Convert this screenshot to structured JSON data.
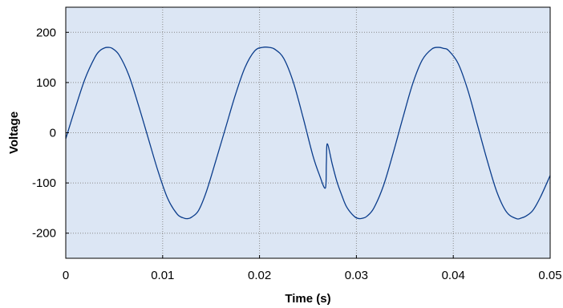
{
  "chart_data": {
    "type": "line",
    "title": "",
    "xlabel": "Time (s)",
    "ylabel": "Voltage",
    "xlim": [
      0,
      0.05
    ],
    "ylim": [
      -250,
      250
    ],
    "x_ticks": [
      0,
      0.01,
      0.02,
      0.03,
      0.04,
      0.05
    ],
    "x_tick_labels": [
      "0",
      "0.01",
      "0.02",
      "0.03",
      "0.04",
      "0.05"
    ],
    "y_ticks": [
      200,
      100,
      0,
      -100,
      -200
    ],
    "y_tick_labels": [
      "200",
      "100",
      "0",
      "-100",
      "-200"
    ],
    "grid": true,
    "legend": "none",
    "series": [
      {
        "color": "#0b3d8c",
        "x": [
          0,
          0.001,
          0.002,
          0.003,
          0.0035,
          0.004,
          0.0044,
          0.0048,
          0.0055,
          0.0065,
          0.0075,
          0.0085,
          0.0095,
          0.0105,
          0.0115,
          0.0122,
          0.0126,
          0.013,
          0.0137,
          0.0145,
          0.0155,
          0.0165,
          0.0175,
          0.0185,
          0.0195,
          0.0203,
          0.021,
          0.0216,
          0.0225,
          0.0235,
          0.0245,
          0.0255,
          0.0262,
          0.0268,
          0.0269,
          0.027,
          0.0275,
          0.028,
          0.0285,
          0.029,
          0.0298,
          0.0303,
          0.0307,
          0.0311,
          0.0318,
          0.0328,
          0.0338,
          0.0348,
          0.0358,
          0.0368,
          0.0378,
          0.0385,
          0.039,
          0.0395,
          0.0405,
          0.0415,
          0.0425,
          0.0435,
          0.0445,
          0.0455,
          0.0465,
          0.047,
          0.0475,
          0.0482,
          0.049,
          0.05
        ],
        "y": [
          -12,
          50,
          108,
          150,
          163,
          169,
          170,
          168,
          155,
          115,
          55,
          -10,
          -75,
          -130,
          -162,
          -170,
          -171,
          -168,
          -155,
          -118,
          -55,
          10,
          75,
          130,
          163,
          170,
          170,
          166,
          148,
          100,
          30,
          -45,
          -85,
          -110,
          -60,
          -22,
          -62,
          -98,
          -125,
          -148,
          -167,
          -171,
          -170,
          -166,
          -150,
          -105,
          -40,
          30,
          97,
          145,
          167,
          170,
          168,
          164,
          138,
          85,
          15,
          -55,
          -118,
          -158,
          -171,
          -170,
          -166,
          -155,
          -128,
          -85
        ]
      }
    ]
  }
}
